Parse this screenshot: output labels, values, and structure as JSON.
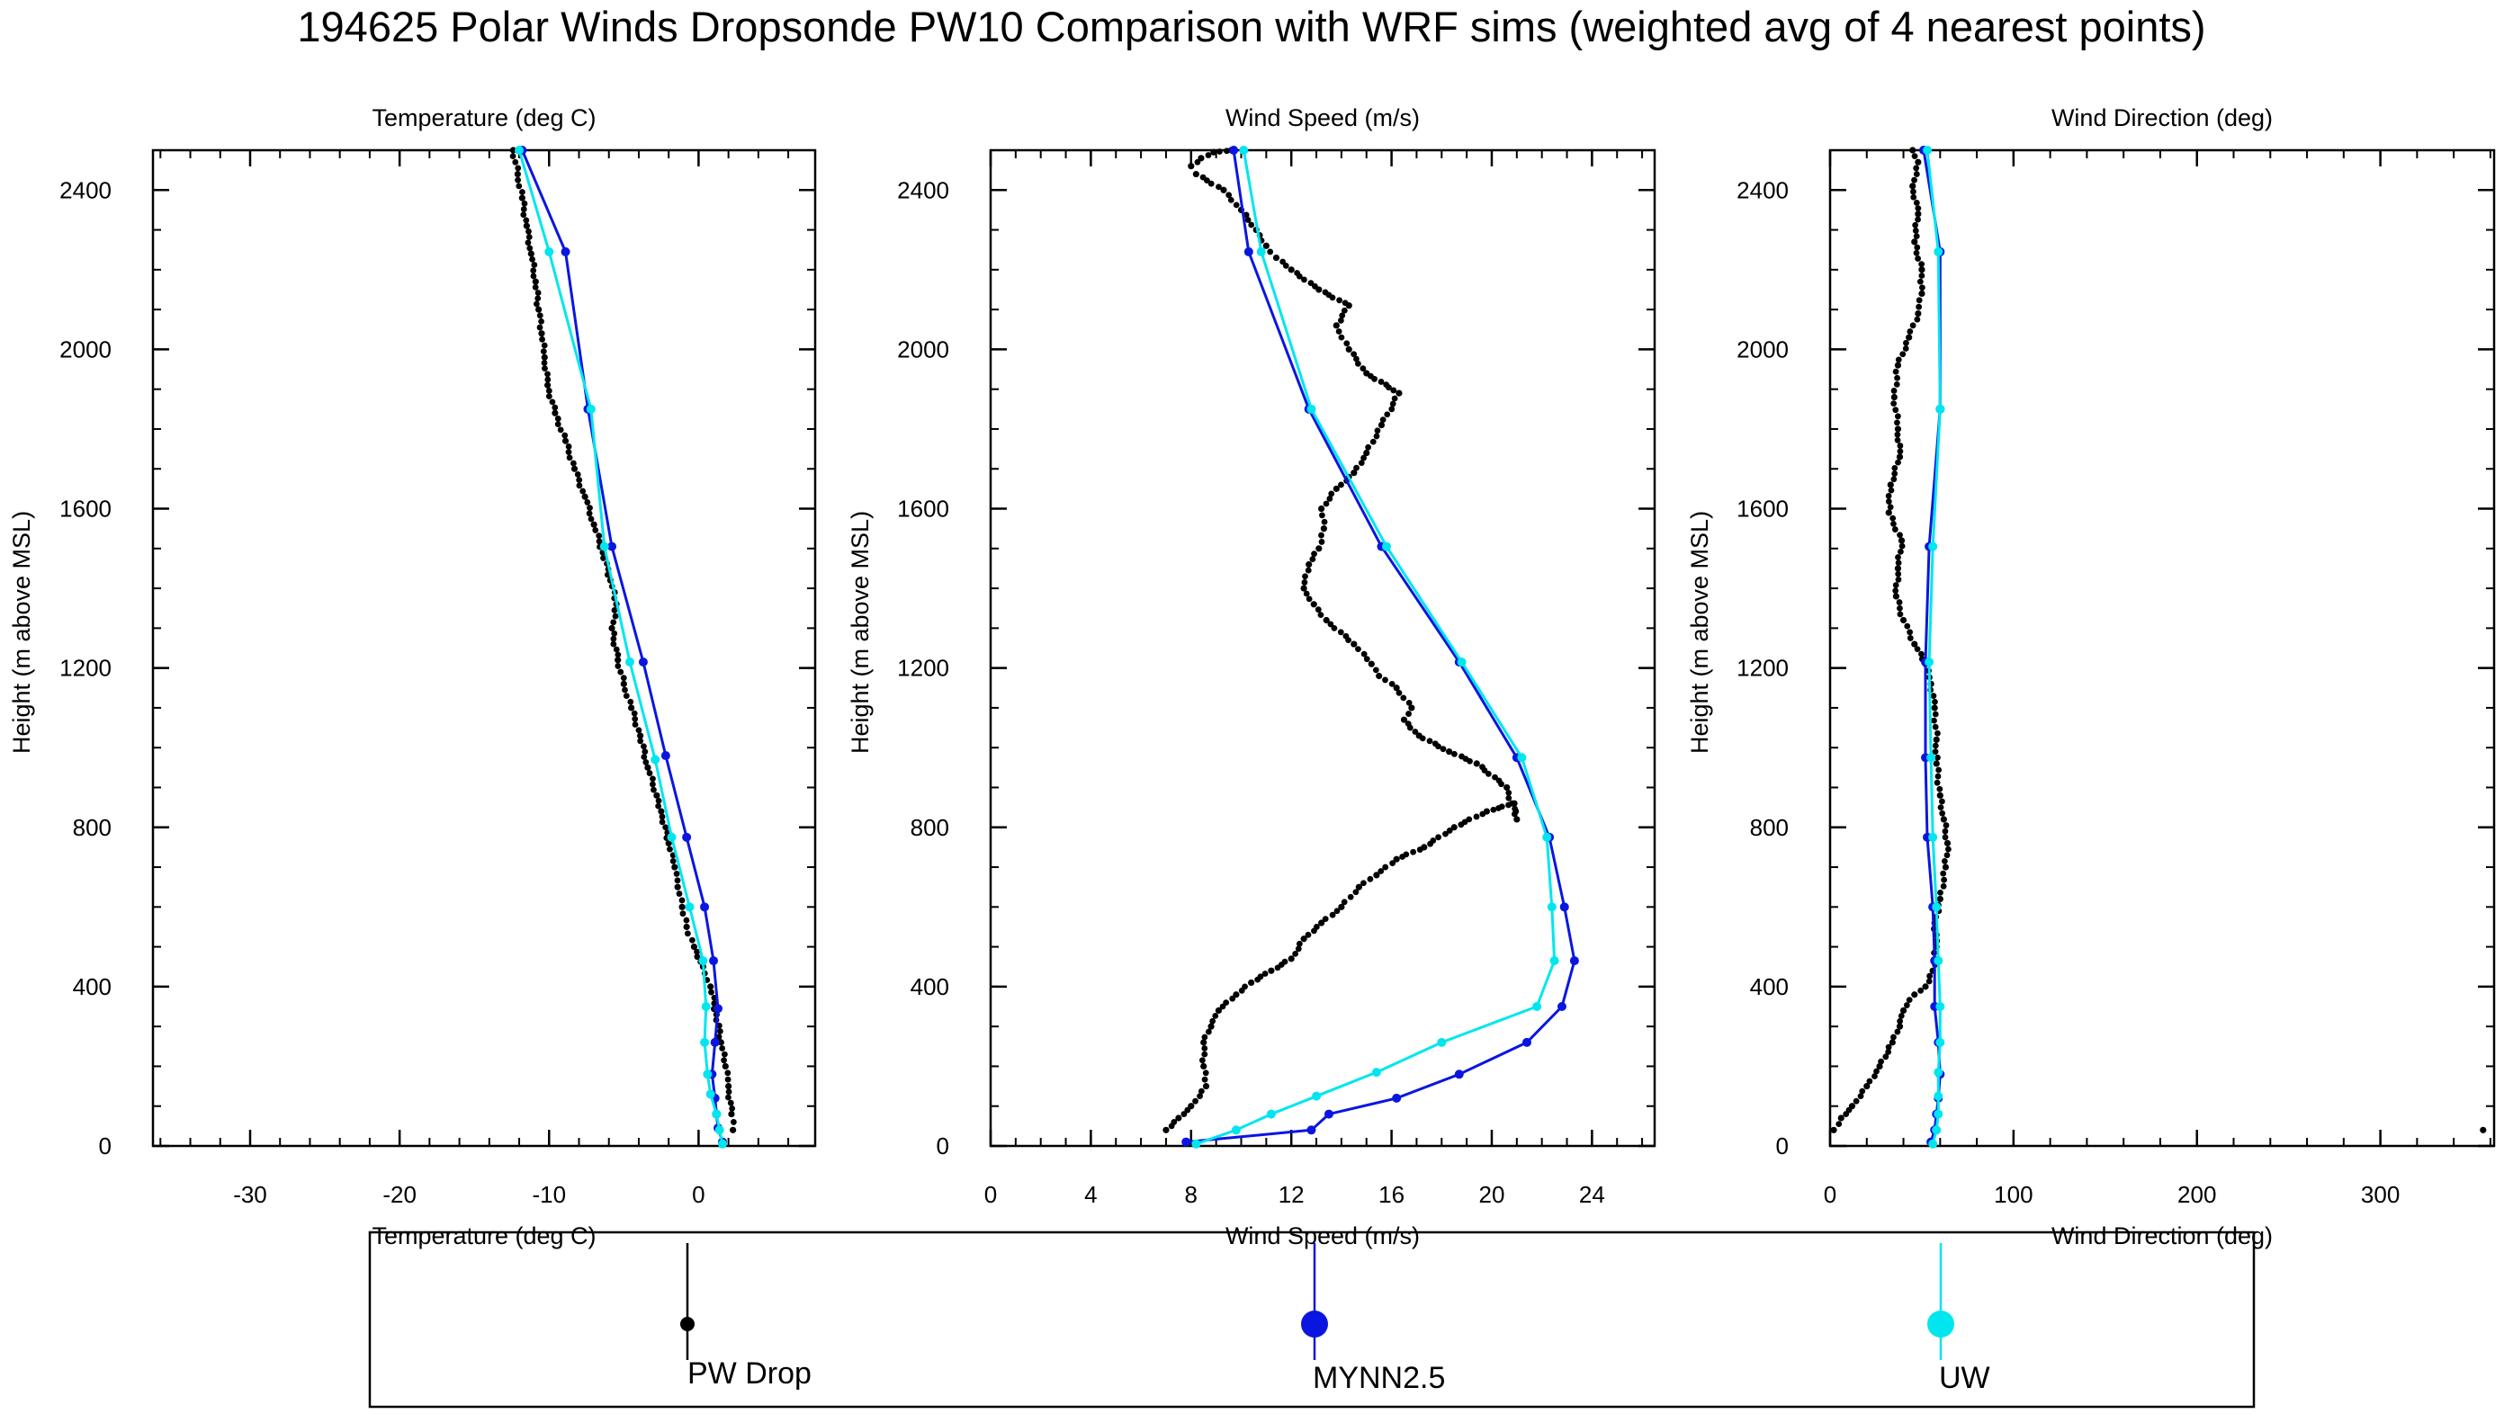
{
  "title": "194625 Polar Winds Dropsonde PW10 Comparison with WRF sims (weighted avg of 4 nearest points)",
  "legend": {
    "items": [
      {
        "label": "PW Drop",
        "color": "#000000",
        "series": "drop"
      },
      {
        "label": "MYNN2.5",
        "color": "#0a16e0",
        "series": "mynn"
      },
      {
        "label": "UW",
        "color": "#00e6ef",
        "series": "uw"
      }
    ]
  },
  "colors": {
    "drop": "#000000",
    "mynn": "#0a16e0",
    "uw": "#00e6ef"
  },
  "chart_data": [
    {
      "id": "temp",
      "type": "line",
      "title": "Temperature (deg C)",
      "xlabel": "Temperature (deg C)",
      "ylabel": "Height (m above MSL)",
      "xlim": [
        -36.5,
        7.8
      ],
      "ylim": [
        0,
        2500
      ],
      "xticks": [
        -30,
        -20,
        -10,
        0
      ],
      "yticks": [
        0,
        400,
        800,
        1200,
        1600,
        2000,
        2400
      ],
      "grid": false,
      "series": [
        {
          "name": "PW Drop",
          "style": "dots",
          "color": "#000000",
          "points": [
            [
              2.3,
              40
            ],
            [
              2.2,
              80
            ],
            [
              2.0,
              150
            ],
            [
              1.8,
              200
            ],
            [
              1.5,
              260
            ],
            [
              1.2,
              330
            ],
            [
              0.8,
              400
            ],
            [
              0.3,
              450
            ],
            [
              -0.3,
              500
            ],
            [
              -0.8,
              550
            ],
            [
              -1.1,
              600
            ],
            [
              -1.4,
              650
            ],
            [
              -1.6,
              700
            ],
            [
              -2.0,
              760
            ],
            [
              -2.5,
              840
            ],
            [
              -2.8,
              880
            ],
            [
              -3.4,
              950
            ],
            [
              -3.9,
              1030
            ],
            [
              -4.5,
              1100
            ],
            [
              -5.0,
              1160
            ],
            [
              -5.4,
              1220
            ],
            [
              -5.8,
              1300
            ],
            [
              -5.5,
              1360
            ],
            [
              -5.9,
              1420
            ],
            [
              -6.4,
              1490
            ],
            [
              -7.0,
              1560
            ],
            [
              -7.6,
              1630
            ],
            [
              -8.3,
              1700
            ],
            [
              -8.9,
              1770
            ],
            [
              -9.6,
              1840
            ],
            [
              -10.1,
              1910
            ],
            [
              -10.3,
              1980
            ],
            [
              -10.5,
              2040
            ],
            [
              -10.7,
              2100
            ],
            [
              -10.9,
              2170
            ],
            [
              -11.2,
              2240
            ],
            [
              -11.5,
              2310
            ],
            [
              -11.8,
              2380
            ],
            [
              -12.1,
              2440
            ],
            [
              -12.4,
              2500
            ]
          ]
        },
        {
          "name": "MYNN2.5",
          "style": "line-markers",
          "color": "#0a16e0",
          "points": [
            [
              1.6,
              10
            ],
            [
              1.3,
              45
            ],
            [
              1.2,
              80
            ],
            [
              1.1,
              120
            ],
            [
              0.9,
              180
            ],
            [
              1.1,
              260
            ],
            [
              1.3,
              345
            ],
            [
              1.0,
              465
            ],
            [
              0.4,
              600
            ],
            [
              -0.8,
              775
            ],
            [
              -2.2,
              980
            ],
            [
              -3.7,
              1215
            ],
            [
              -5.8,
              1505
            ],
            [
              -7.4,
              1850
            ],
            [
              -8.9,
              2245
            ],
            [
              -11.8,
              2500
            ]
          ]
        },
        {
          "name": "UW",
          "style": "line-markers",
          "color": "#00e6ef",
          "points": [
            [
              1.6,
              5
            ],
            [
              1.4,
              40
            ],
            [
              1.2,
              80
            ],
            [
              0.8,
              130
            ],
            [
              0.6,
              180
            ],
            [
              0.4,
              260
            ],
            [
              0.5,
              350
            ],
            [
              0.3,
              465
            ],
            [
              -0.6,
              600
            ],
            [
              -1.8,
              775
            ],
            [
              -2.9,
              970
            ],
            [
              -4.6,
              1215
            ],
            [
              -6.3,
              1505
            ],
            [
              -7.2,
              1850
            ],
            [
              -10.0,
              2245
            ],
            [
              -12.0,
              2500
            ]
          ]
        }
      ]
    },
    {
      "id": "speed",
      "type": "line",
      "title": "Wind Speed (m/s)",
      "xlabel": "Wind Speed (m/s)",
      "ylabel": "Height (m above MSL)",
      "xlim": [
        0,
        26.5
      ],
      "ylim": [
        0,
        2500
      ],
      "xticks": [
        0,
        4,
        8,
        12,
        16,
        20,
        24
      ],
      "yticks": [
        0,
        400,
        800,
        1200,
        1600,
        2000,
        2400
      ],
      "grid": false,
      "series": [
        {
          "name": "PW Drop",
          "style": "dots",
          "color": "#000000",
          "points": [
            [
              7.0,
              40
            ],
            [
              7.5,
              70
            ],
            [
              8.0,
              100
            ],
            [
              8.6,
              150
            ],
            [
              8.5,
              200
            ],
            [
              8.5,
              260
            ],
            [
              8.8,
              300
            ],
            [
              9.1,
              340
            ],
            [
              9.8,
              380
            ],
            [
              10.4,
              410
            ],
            [
              11.2,
              440
            ],
            [
              12.0,
              470
            ],
            [
              12.5,
              520
            ],
            [
              13.2,
              560
            ],
            [
              14.0,
              600
            ],
            [
              14.7,
              650
            ],
            [
              15.4,
              680
            ],
            [
              16.2,
              720
            ],
            [
              17.3,
              750
            ],
            [
              18.5,
              800
            ],
            [
              19.8,
              840
            ],
            [
              20.9,
              860
            ],
            [
              21.0,
              820
            ],
            [
              20.6,
              900
            ],
            [
              19.4,
              960
            ],
            [
              18.3,
              990
            ],
            [
              17.1,
              1030
            ],
            [
              16.5,
              1070
            ],
            [
              16.8,
              1100
            ],
            [
              16.2,
              1150
            ],
            [
              15.5,
              1180
            ],
            [
              15.2,
              1210
            ],
            [
              14.5,
              1260
            ],
            [
              13.4,
              1320
            ],
            [
              12.9,
              1360
            ],
            [
              12.5,
              1400
            ],
            [
              12.7,
              1460
            ],
            [
              13.1,
              1500
            ],
            [
              13.3,
              1550
            ],
            [
              13.2,
              1600
            ],
            [
              13.8,
              1650
            ],
            [
              14.5,
              1690
            ],
            [
              15.0,
              1740
            ],
            [
              15.6,
              1810
            ],
            [
              16.3,
              1890
            ],
            [
              15.0,
              1940
            ],
            [
              14.3,
              2000
            ],
            [
              13.8,
              2060
            ],
            [
              14.3,
              2110
            ],
            [
              13.1,
              2150
            ],
            [
              12.0,
              2200
            ],
            [
              11.4,
              2230
            ],
            [
              11.0,
              2260
            ],
            [
              10.6,
              2300
            ],
            [
              10.0,
              2350
            ],
            [
              9.3,
              2400
            ],
            [
              8.2,
              2440
            ],
            [
              8.0,
              2460
            ],
            [
              8.4,
              2480
            ],
            [
              8.9,
              2495
            ],
            [
              9.6,
              2500
            ]
          ]
        },
        {
          "name": "MYNN2.5",
          "style": "line-markers",
          "color": "#0a16e0",
          "points": [
            [
              7.8,
              10
            ],
            [
              12.8,
              40
            ],
            [
              13.5,
              80
            ],
            [
              16.2,
              120
            ],
            [
              18.7,
              180
            ],
            [
              21.4,
              260
            ],
            [
              22.8,
              350
            ],
            [
              23.3,
              465
            ],
            [
              22.9,
              600
            ],
            [
              22.3,
              775
            ],
            [
              21.0,
              975
            ],
            [
              18.7,
              1215
            ],
            [
              15.6,
              1505
            ],
            [
              12.7,
              1850
            ],
            [
              10.3,
              2245
            ],
            [
              9.7,
              2500
            ]
          ]
        },
        {
          "name": "UW",
          "style": "line-markers",
          "color": "#00e6ef",
          "points": [
            [
              8.2,
              5
            ],
            [
              9.8,
              40
            ],
            [
              11.2,
              80
            ],
            [
              13.0,
              125
            ],
            [
              15.4,
              185
            ],
            [
              18.0,
              260
            ],
            [
              21.8,
              350
            ],
            [
              22.5,
              465
            ],
            [
              22.4,
              600
            ],
            [
              22.2,
              775
            ],
            [
              21.2,
              975
            ],
            [
              18.8,
              1215
            ],
            [
              15.8,
              1505
            ],
            [
              12.8,
              1850
            ],
            [
              10.8,
              2245
            ],
            [
              10.1,
              2500
            ]
          ]
        }
      ]
    },
    {
      "id": "dir",
      "type": "line",
      "title": "Wind Direction (deg)",
      "xlabel": "Wind Direction (deg)",
      "ylabel": "Height (m above MSL)",
      "xlim": [
        0,
        362
      ],
      "ylim": [
        0,
        2500
      ],
      "xticks": [
        0,
        100,
        200,
        300
      ],
      "yticks": [
        0,
        400,
        800,
        1200,
        1600,
        2000,
        2400
      ],
      "grid": false,
      "series": [
        {
          "name": "PW Drop",
          "style": "dots",
          "color": "#000000",
          "points": [
            [
              2,
              40
            ],
            [
              6,
              70
            ],
            [
              12,
              100
            ],
            [
              20,
              150
            ],
            [
              27,
              200
            ],
            [
              34,
              260
            ],
            [
              38,
              300
            ],
            [
              40,
              340
            ],
            [
              46,
              380
            ],
            [
              52,
              400
            ],
            [
              56,
              440
            ],
            [
              58,
              500
            ],
            [
              57,
              560
            ],
            [
              60,
              620
            ],
            [
              63,
              700
            ],
            [
              64,
              760
            ],
            [
              62,
              820
            ],
            [
              60,
              880
            ],
            [
              58,
              960
            ],
            [
              58,
              1020
            ],
            [
              57,
              1100
            ],
            [
              55,
              1160
            ],
            [
              52,
              1210
            ],
            [
              46,
              1260
            ],
            [
              40,
              1320
            ],
            [
              36,
              1380
            ],
            [
              37,
              1450
            ],
            [
              39,
              1520
            ],
            [
              32,
              1590
            ],
            [
              33,
              1660
            ],
            [
              38,
              1730
            ],
            [
              37,
              1800
            ],
            [
              35,
              1880
            ],
            [
              37,
              1960
            ],
            [
              43,
              2030
            ],
            [
              48,
              2090
            ],
            [
              50,
              2140
            ],
            [
              50,
              2200
            ],
            [
              46,
              2270
            ],
            [
              48,
              2340
            ],
            [
              45,
              2410
            ],
            [
              48,
              2470
            ],
            [
              45,
              2500
            ],
            [
              356,
              40
            ]
          ]
        },
        {
          "name": "MYNN2.5",
          "style": "line-markers",
          "color": "#0a16e0",
          "points": [
            [
              55,
              10
            ],
            [
              57,
              40
            ],
            [
              58,
              80
            ],
            [
              59,
              120
            ],
            [
              60,
              180
            ],
            [
              59,
              260
            ],
            [
              57,
              350
            ],
            [
              57,
              465
            ],
            [
              56,
              600
            ],
            [
              53,
              775
            ],
            [
              52,
              975
            ],
            [
              52,
              1215
            ],
            [
              54,
              1505
            ],
            [
              60,
              1850
            ],
            [
              60,
              2245
            ],
            [
              51,
              2500
            ]
          ]
        },
        {
          "name": "UW",
          "style": "line-markers",
          "color": "#00e6ef",
          "points": [
            [
              56,
              5
            ],
            [
              58,
              40
            ],
            [
              59,
              80
            ],
            [
              59,
              125
            ],
            [
              59,
              185
            ],
            [
              60,
              260
            ],
            [
              60,
              350
            ],
            [
              59,
              465
            ],
            [
              58,
              600
            ],
            [
              56,
              775
            ],
            [
              55,
              975
            ],
            [
              54,
              1215
            ],
            [
              56,
              1505
            ],
            [
              60,
              1850
            ],
            [
              59,
              2245
            ],
            [
              53,
              2500
            ]
          ]
        }
      ]
    }
  ]
}
